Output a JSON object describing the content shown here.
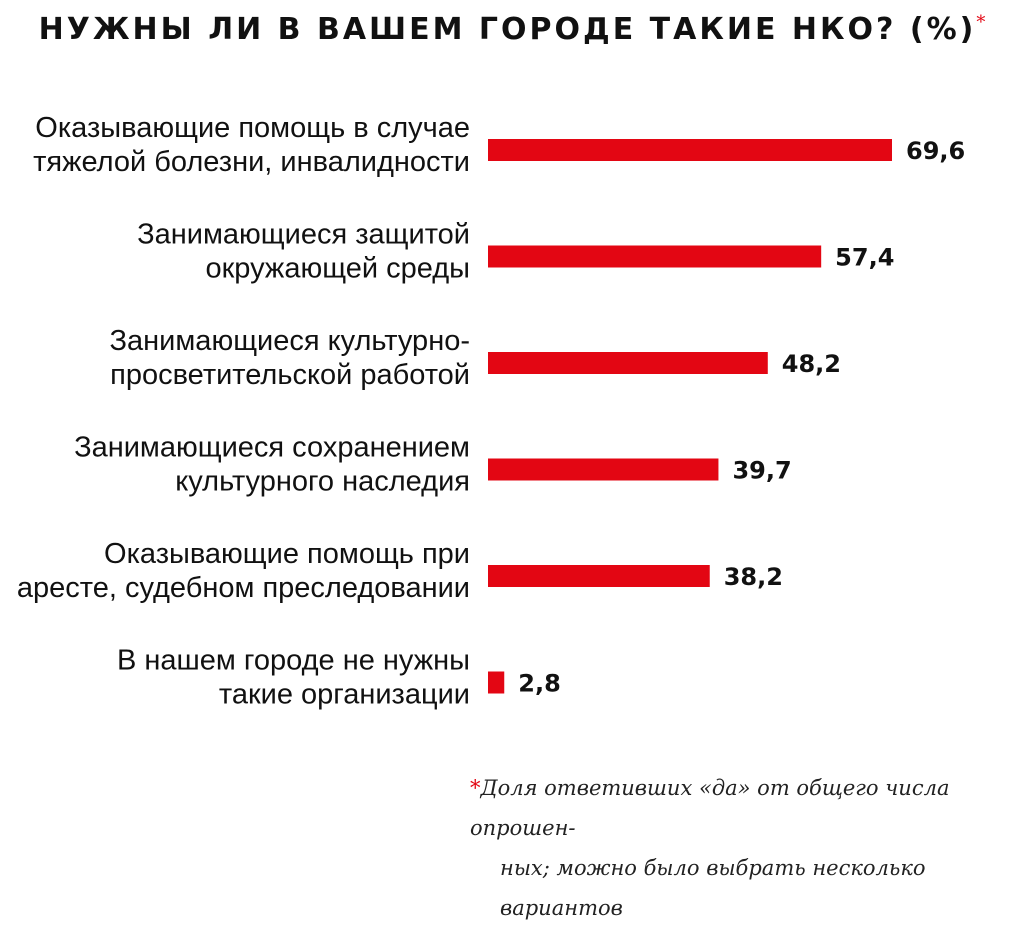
{
  "chart_data": {
    "type": "bar",
    "orientation": "horizontal",
    "title": "НУЖНЫ ЛИ В ВАШЕМ ГОРОДЕ ТАКИЕ НКО? (%)",
    "title_mark": "*",
    "categories": [
      [
        "Оказывающие помощь в случае",
        "тяжелой болезни, инвалидности"
      ],
      [
        "Занимающиеся защитой",
        "окружающей среды"
      ],
      [
        "Занимающиеся культурно-",
        "просветительской работой"
      ],
      [
        "Занимающиеся сохранением",
        "культурного наследия"
      ],
      [
        "Оказывающие помощь при",
        "аресте, судебном преследовании"
      ],
      [
        "В нашем городе не нужны",
        "такие организации"
      ]
    ],
    "values": [
      69.6,
      57.4,
      48.2,
      39.7,
      38.2,
      2.8
    ],
    "value_labels": [
      "69,6",
      "57,4",
      "48,2",
      "39,7",
      "38,2",
      "2,8"
    ],
    "xlim": [
      0,
      69.6
    ],
    "grid": false,
    "bar_color": "#e30613"
  },
  "footnote": {
    "mark": "*",
    "line1": "Доля ответивших «да» от общего числа опрошен-",
    "line2": "ных; можно было выбрать несколько вариантов"
  },
  "colors": {
    "accent": "#e30613",
    "text": "#111111"
  }
}
